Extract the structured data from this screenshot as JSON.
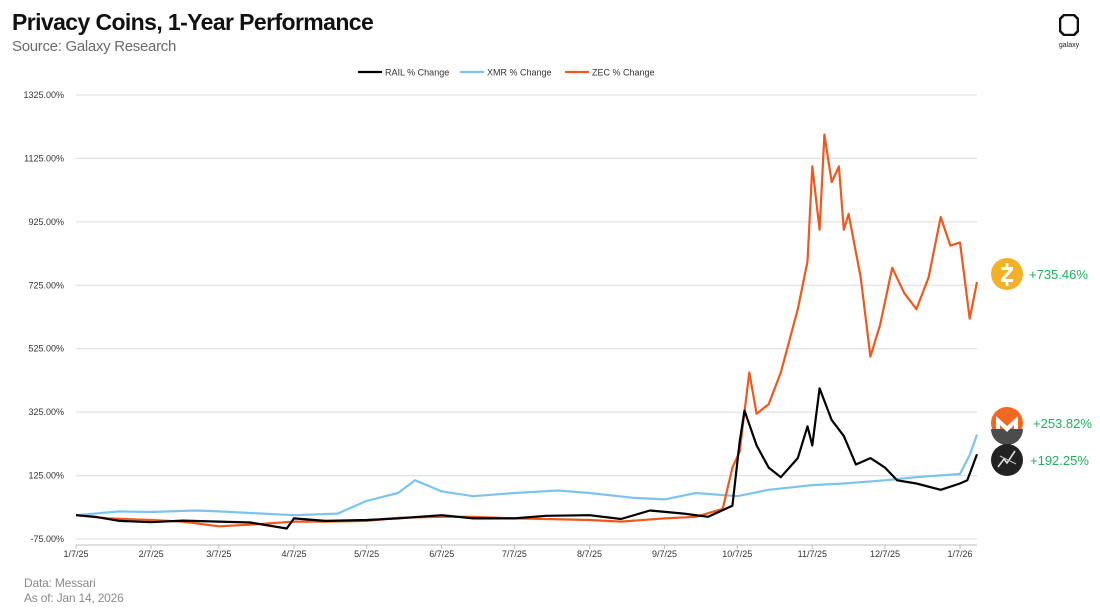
{
  "header": {
    "title": "Privacy Coins, 1-Year Performance",
    "subtitle": "Source: Galaxy Research",
    "brand": "galaxy"
  },
  "footer": {
    "data_source": "Data: Messari",
    "as_of": "As of: Jan 14, 2026"
  },
  "colors": {
    "rail": "#000000",
    "xmr": "#7cc4ee",
    "zec": "#f0581e",
    "zec_icon": "#f4b128",
    "xmr_icon": "#f26822",
    "rail_icon": "#222222",
    "end_label": "#1fae5b"
  },
  "icons": {
    "zec": "zcash-logo-icon",
    "xmr": "monero-logo-icon",
    "rail": "railgun-logo-icon",
    "brand": "galaxy-logo-icon"
  },
  "chart_data": {
    "type": "line",
    "title": "Privacy Coins, 1-Year Performance",
    "xlabel": "",
    "ylabel": "",
    "x_ticks": [
      "1/7/25",
      "2/7/25",
      "3/7/25",
      "4/7/25",
      "5/7/25",
      "6/7/25",
      "7/7/25",
      "8/7/25",
      "9/7/25",
      "10/7/25",
      "11/7/25",
      "12/7/25",
      "1/7/26"
    ],
    "x_range": [
      "2025-01-07",
      "2026-01-14"
    ],
    "y_ticks": [
      "1325.00%",
      "1125.00%",
      "925.00%",
      "725.00%",
      "525.00%",
      "325.00%",
      "125.00%",
      "-75.00%"
    ],
    "ylim": [
      -75,
      1325
    ],
    "grid": true,
    "legend_position": "top-center",
    "series": [
      {
        "name": "RAIL % Change",
        "color": "#000000",
        "end_label": "+192.25%",
        "points": [
          [
            "2025-01-07",
            0
          ],
          [
            "2025-01-15",
            -5
          ],
          [
            "2025-01-25",
            -18
          ],
          [
            "2025-02-07",
            -22
          ],
          [
            "2025-02-20",
            -17
          ],
          [
            "2025-03-07",
            -20
          ],
          [
            "2025-03-20",
            -23
          ],
          [
            "2025-04-04",
            -42
          ],
          [
            "2025-04-07",
            -10
          ],
          [
            "2025-04-20",
            -18
          ],
          [
            "2025-05-07",
            -15
          ],
          [
            "2025-05-20",
            -10
          ],
          [
            "2025-06-07",
            0
          ],
          [
            "2025-06-20",
            -10
          ],
          [
            "2025-07-07",
            -10
          ],
          [
            "2025-07-20",
            -2
          ],
          [
            "2025-08-07",
            0
          ],
          [
            "2025-08-20",
            -12
          ],
          [
            "2025-09-01",
            15
          ],
          [
            "2025-09-15",
            5
          ],
          [
            "2025-09-25",
            -5
          ],
          [
            "2025-10-05",
            30
          ],
          [
            "2025-10-08",
            230
          ],
          [
            "2025-10-10",
            330
          ],
          [
            "2025-10-15",
            220
          ],
          [
            "2025-10-20",
            150
          ],
          [
            "2025-10-25",
            120
          ],
          [
            "2025-11-01",
            180
          ],
          [
            "2025-11-05",
            280
          ],
          [
            "2025-11-07",
            220
          ],
          [
            "2025-11-10",
            400
          ],
          [
            "2025-11-15",
            300
          ],
          [
            "2025-11-20",
            250
          ],
          [
            "2025-11-25",
            160
          ],
          [
            "2025-12-01",
            180
          ],
          [
            "2025-12-07",
            150
          ],
          [
            "2025-12-12",
            110
          ],
          [
            "2025-12-20",
            100
          ],
          [
            "2025-12-30",
            80
          ],
          [
            "2026-01-07",
            100
          ],
          [
            "2026-01-10",
            110
          ],
          [
            "2026-01-14",
            192.25
          ]
        ]
      },
      {
        "name": "XMR % Change",
        "color": "#7cc4ee",
        "end_label": "+253.82%",
        "points": [
          [
            "2025-01-07",
            0
          ],
          [
            "2025-01-25",
            12
          ],
          [
            "2025-02-07",
            10
          ],
          [
            "2025-02-25",
            15
          ],
          [
            "2025-03-07",
            12
          ],
          [
            "2025-03-25",
            5
          ],
          [
            "2025-04-07",
            0
          ],
          [
            "2025-04-25",
            5
          ],
          [
            "2025-05-07",
            45
          ],
          [
            "2025-05-20",
            70
          ],
          [
            "2025-05-27",
            110
          ],
          [
            "2025-06-07",
            75
          ],
          [
            "2025-06-20",
            60
          ],
          [
            "2025-07-07",
            70
          ],
          [
            "2025-07-25",
            78
          ],
          [
            "2025-08-07",
            70
          ],
          [
            "2025-08-25",
            55
          ],
          [
            "2025-09-07",
            50
          ],
          [
            "2025-09-20",
            70
          ],
          [
            "2025-10-07",
            60
          ],
          [
            "2025-10-20",
            80
          ],
          [
            "2025-11-07",
            95
          ],
          [
            "2025-11-20",
            100
          ],
          [
            "2025-12-07",
            110
          ],
          [
            "2025-12-20",
            120
          ],
          [
            "2026-01-07",
            130
          ],
          [
            "2026-01-11",
            190
          ],
          [
            "2026-01-14",
            253.82
          ]
        ]
      },
      {
        "name": "ZEC % Change",
        "color": "#f0581e",
        "end_label": "+735.46%",
        "points": [
          [
            "2025-01-07",
            0
          ],
          [
            "2025-01-20",
            -10
          ],
          [
            "2025-02-07",
            -15
          ],
          [
            "2025-02-20",
            -20
          ],
          [
            "2025-03-07",
            -35
          ],
          [
            "2025-03-20",
            -30
          ],
          [
            "2025-04-07",
            -20
          ],
          [
            "2025-04-20",
            -20
          ],
          [
            "2025-05-07",
            -18
          ],
          [
            "2025-05-20",
            -8
          ],
          [
            "2025-06-07",
            -5
          ],
          [
            "2025-06-20",
            -5
          ],
          [
            "2025-07-07",
            -10
          ],
          [
            "2025-07-20",
            -12
          ],
          [
            "2025-08-07",
            -15
          ],
          [
            "2025-08-20",
            -20
          ],
          [
            "2025-09-07",
            -10
          ],
          [
            "2025-09-20",
            -5
          ],
          [
            "2025-10-01",
            20
          ],
          [
            "2025-10-05",
            150
          ],
          [
            "2025-10-08",
            200
          ],
          [
            "2025-10-12",
            450
          ],
          [
            "2025-10-15",
            320
          ],
          [
            "2025-10-20",
            350
          ],
          [
            "2025-10-25",
            450
          ],
          [
            "2025-11-01",
            650
          ],
          [
            "2025-11-05",
            800
          ],
          [
            "2025-11-07",
            1100
          ],
          [
            "2025-11-10",
            900
          ],
          [
            "2025-11-12",
            1200
          ],
          [
            "2025-11-15",
            1050
          ],
          [
            "2025-11-18",
            1100
          ],
          [
            "2025-11-20",
            900
          ],
          [
            "2025-11-22",
            950
          ],
          [
            "2025-11-27",
            750
          ],
          [
            "2025-12-01",
            500
          ],
          [
            "2025-12-05",
            600
          ],
          [
            "2025-12-10",
            780
          ],
          [
            "2025-12-15",
            700
          ],
          [
            "2025-12-20",
            650
          ],
          [
            "2025-12-25",
            750
          ],
          [
            "2025-12-30",
            940
          ],
          [
            "2026-01-03",
            850
          ],
          [
            "2026-01-07",
            860
          ],
          [
            "2026-01-11",
            620
          ],
          [
            "2026-01-14",
            735.46
          ]
        ]
      }
    ]
  }
}
